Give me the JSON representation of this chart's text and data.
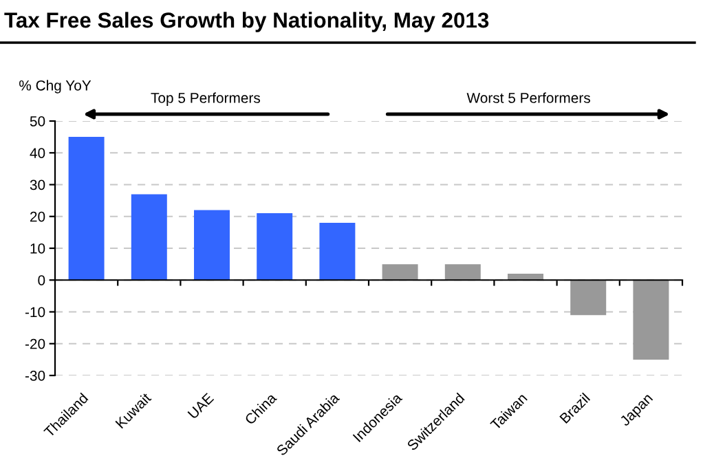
{
  "chart_data": {
    "type": "bar",
    "title": "Tax Free Sales Growth by Nationality, May 2013",
    "ylabel": "% Chg YoY",
    "categories": [
      "Thailand",
      "Kuwait",
      "UAE",
      "China",
      "Saudi Arabia",
      "Indonesia",
      "Switzerland",
      "Taiwan",
      "Brazil",
      "Japan"
    ],
    "values": [
      45,
      27,
      22,
      21,
      18,
      5,
      5,
      2,
      -11,
      -25
    ],
    "colors": [
      "#3366ff",
      "#3366ff",
      "#3366ff",
      "#3366ff",
      "#3366ff",
      "#999999",
      "#999999",
      "#999999",
      "#999999",
      "#999999"
    ],
    "ylim": [
      -30,
      50
    ],
    "yticks": [
      -30,
      -20,
      -10,
      0,
      10,
      20,
      30,
      40,
      50
    ],
    "grid": "y",
    "annotations": [
      "Top 5 Performers",
      "Worst 5 Performers"
    ]
  }
}
